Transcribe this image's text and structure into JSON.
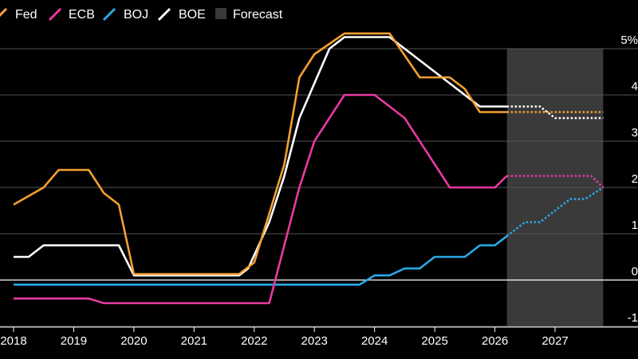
{
  "chart_data": {
    "type": "line",
    "title": "",
    "xlabel": "",
    "ylabel": "",
    "unit": "%",
    "xlim": [
      2018,
      2028.15
    ],
    "ylim": [
      -1.1,
      5.25
    ],
    "yticks": [
      5,
      4,
      3,
      2,
      1,
      0,
      -1
    ],
    "ytick_labels": [
      "5%",
      "4",
      "3",
      "2",
      "1",
      "0",
      "-1"
    ],
    "xticks": [
      2018,
      2019,
      2020,
      2021,
      2022,
      2023,
      2024,
      2025,
      2026,
      2027
    ],
    "xtick_labels": [
      "2018",
      "2019",
      "2020",
      "2021",
      "2022",
      "2023",
      "2024",
      "2025",
      "2026",
      "2027"
    ],
    "grid": true,
    "legend_position": "top-left",
    "forecast_region": {
      "label": "Forecast",
      "x_start": 2026.2,
      "x_end": 2027.8,
      "color": "#3a3a3a"
    },
    "legend": [
      {
        "label": "Fed",
        "color": "#f5a030"
      },
      {
        "label": "ECB",
        "color": "#e83aa0"
      },
      {
        "label": "BOJ",
        "color": "#2aaae8"
      },
      {
        "label": "BOE",
        "color": "#ffffff"
      },
      {
        "label": "Forecast",
        "color": "#3a3a3a"
      }
    ],
    "series": [
      {
        "name": "Fed",
        "color": "#f5a030",
        "points": [
          [
            2018.0,
            1.63
          ],
          [
            2018.5,
            2.0
          ],
          [
            2018.75,
            2.38
          ],
          [
            2019.25,
            2.38
          ],
          [
            2019.5,
            1.88
          ],
          [
            2019.75,
            1.63
          ],
          [
            2020.0,
            0.13
          ],
          [
            2021.75,
            0.13
          ],
          [
            2022.0,
            0.38
          ],
          [
            2022.5,
            2.5
          ],
          [
            2022.75,
            4.38
          ],
          [
            2023.0,
            4.88
          ],
          [
            2023.5,
            5.33
          ],
          [
            2024.25,
            5.33
          ],
          [
            2024.75,
            4.38
          ],
          [
            2025.25,
            4.38
          ],
          [
            2025.5,
            4.13
          ],
          [
            2025.75,
            3.63
          ],
          [
            2026.2,
            3.63
          ],
          [
            2027.8,
            3.63
          ]
        ]
      },
      {
        "name": "ECB",
        "color": "#e83aa0",
        "points": [
          [
            2018.0,
            -0.4
          ],
          [
            2019.25,
            -0.4
          ],
          [
            2019.5,
            -0.5
          ],
          [
            2022.25,
            -0.5
          ],
          [
            2022.75,
            2.0
          ],
          [
            2023.0,
            3.0
          ],
          [
            2023.5,
            4.0
          ],
          [
            2024.0,
            4.0
          ],
          [
            2024.5,
            3.5
          ],
          [
            2025.25,
            2.0
          ],
          [
            2026.0,
            2.0
          ],
          [
            2026.2,
            2.25
          ],
          [
            2027.6,
            2.25
          ],
          [
            2027.8,
            2.0
          ]
        ]
      },
      {
        "name": "BOJ",
        "color": "#2aaae8",
        "points": [
          [
            2018.0,
            -0.1
          ],
          [
            2023.75,
            -0.1
          ],
          [
            2024.0,
            0.1
          ],
          [
            2024.25,
            0.1
          ],
          [
            2024.5,
            0.25
          ],
          [
            2024.75,
            0.25
          ],
          [
            2025.0,
            0.5
          ],
          [
            2025.5,
            0.5
          ],
          [
            2025.75,
            0.75
          ],
          [
            2026.0,
            0.75
          ],
          [
            2026.2,
            0.95
          ],
          [
            2026.5,
            1.25
          ],
          [
            2026.75,
            1.25
          ],
          [
            2027.25,
            1.75
          ],
          [
            2027.5,
            1.75
          ],
          [
            2027.8,
            2.0
          ]
        ]
      },
      {
        "name": "BOE",
        "color": "#ffffff",
        "points": [
          [
            2018.0,
            0.5
          ],
          [
            2018.25,
            0.5
          ],
          [
            2018.5,
            0.75
          ],
          [
            2019.75,
            0.75
          ],
          [
            2020.0,
            0.1
          ],
          [
            2021.75,
            0.1
          ],
          [
            2021.9,
            0.25
          ],
          [
            2022.25,
            1.25
          ],
          [
            2022.5,
            2.25
          ],
          [
            2022.75,
            3.5
          ],
          [
            2023.0,
            4.25
          ],
          [
            2023.25,
            5.0
          ],
          [
            2023.5,
            5.25
          ],
          [
            2024.25,
            5.25
          ],
          [
            2025.0,
            4.5
          ],
          [
            2025.75,
            3.75
          ],
          [
            2026.2,
            3.75
          ],
          [
            2026.75,
            3.75
          ],
          [
            2027.0,
            3.5
          ],
          [
            2027.8,
            3.5
          ]
        ]
      }
    ]
  }
}
